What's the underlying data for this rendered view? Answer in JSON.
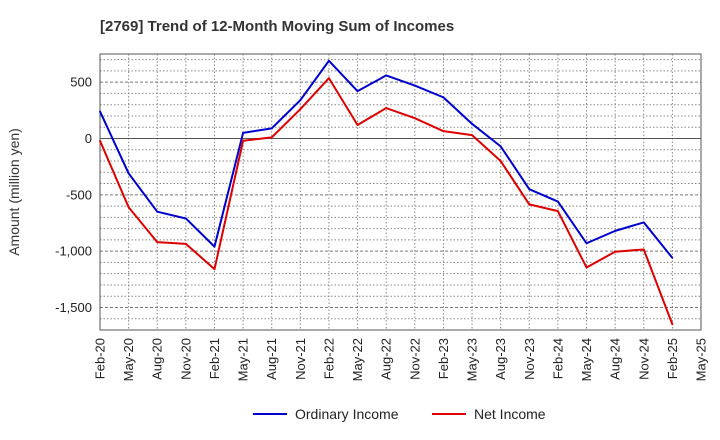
{
  "chart_data": {
    "type": "line",
    "title": "[2769]  Trend of 12-Month Moving Sum of Incomes",
    "xlabel": "",
    "ylabel": "Amount (million yen)",
    "ylim": [
      -1700,
      750
    ],
    "yticks": [
      500,
      0,
      -500,
      -1000,
      -1500
    ],
    "ytick_labels": [
      "500",
      "0",
      "-500",
      "-1,000",
      "-1,500"
    ],
    "grid": true,
    "legend_position": "bottom",
    "categories": [
      "Feb-20",
      "May-20",
      "Aug-20",
      "Nov-20",
      "Feb-21",
      "May-21",
      "Aug-21",
      "Nov-21",
      "Feb-22",
      "May-22",
      "Aug-22",
      "Nov-22",
      "Feb-23",
      "May-23",
      "Aug-23",
      "Nov-23",
      "Feb-24",
      "May-24",
      "Aug-24",
      "Nov-24",
      "Feb-25",
      "May-25"
    ],
    "series": [
      {
        "name": "Ordinary Income",
        "color": "#0000cc",
        "values": [
          240,
          -310,
          -650,
          -710,
          -960,
          50,
          90,
          340,
          690,
          420,
          560,
          470,
          365,
          130,
          -70,
          -450,
          -560,
          -930,
          -820,
          -745,
          -1060,
          null
        ]
      },
      {
        "name": "Net Income",
        "color": "#dd0000",
        "values": [
          -20,
          -610,
          -920,
          -935,
          -1160,
          -20,
          10,
          260,
          535,
          120,
          270,
          180,
          65,
          30,
          -200,
          -585,
          -645,
          -1145,
          -1005,
          -985,
          -1650,
          null
        ]
      }
    ]
  }
}
